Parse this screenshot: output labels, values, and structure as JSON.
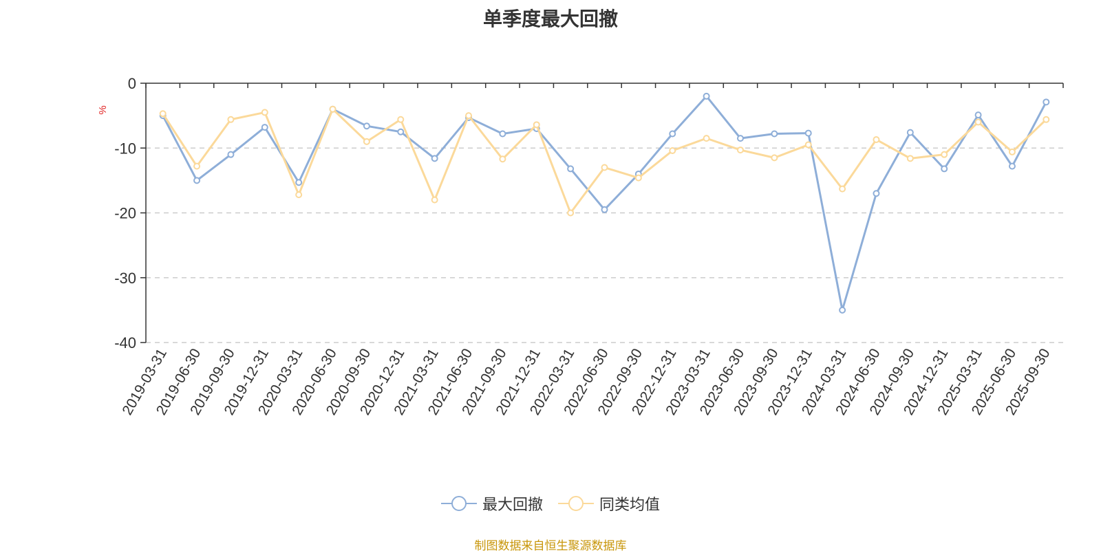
{
  "chart_data": {
    "type": "line",
    "title": "单季度最大回撤",
    "ylabel": "%",
    "ylim": [
      -40,
      0
    ],
    "yticks": [
      0,
      -10,
      -20,
      -30,
      -40
    ],
    "grid": true,
    "legend_position": "bottom",
    "categories": [
      "2019-03-31",
      "2019-06-30",
      "2019-09-30",
      "2019-12-31",
      "2020-03-31",
      "2020-06-30",
      "2020-09-30",
      "2020-12-31",
      "2021-03-31",
      "2021-06-30",
      "2021-09-30",
      "2021-12-31",
      "2022-03-31",
      "2022-06-30",
      "2022-09-30",
      "2022-12-31",
      "2023-03-31",
      "2023-06-30",
      "2023-09-30",
      "2023-12-31",
      "2024-03-31",
      "2024-06-30",
      "2024-09-30",
      "2024-12-31",
      "2025-03-31",
      "2025-06-30",
      "2025-09-30"
    ],
    "series": [
      {
        "name": "最大回撤",
        "color": "#8eaed8",
        "values": [
          -5.0,
          -15.0,
          -11.0,
          -6.8,
          -15.3,
          -4.0,
          -6.6,
          -7.5,
          -11.6,
          -5.3,
          -7.8,
          -7.0,
          -13.2,
          -19.5,
          -14.0,
          -7.8,
          -2.0,
          -8.5,
          -7.8,
          -7.7,
          -35.0,
          -17.0,
          -7.6,
          -13.2,
          -4.9,
          -12.8,
          -2.9
        ]
      },
      {
        "name": "同类均值",
        "color": "#fbd99a",
        "values": [
          -4.7,
          -12.8,
          -5.6,
          -4.5,
          -17.2,
          -4.0,
          -9.0,
          -5.6,
          -18.0,
          -5.0,
          -11.7,
          -6.4,
          -20.0,
          -13.0,
          -14.6,
          -10.4,
          -8.5,
          -10.3,
          -11.5,
          -9.5,
          -16.3,
          -8.7,
          -11.6,
          -11.0,
          -6.0,
          -10.6,
          -5.6
        ]
      }
    ]
  },
  "footer": {
    "source": "制图数据来自恒生聚源数据库"
  }
}
